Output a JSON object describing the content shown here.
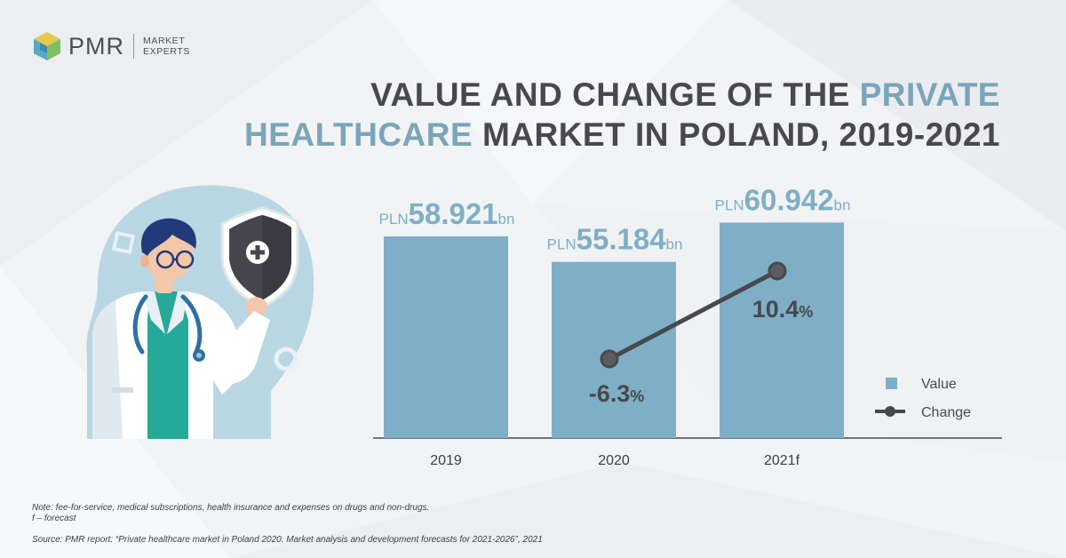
{
  "brand": {
    "name": "PMR",
    "tagline_line1": "MARKET",
    "tagline_line2": "EXPERTS"
  },
  "title": {
    "part1": "VALUE AND CHANGE OF THE ",
    "part2_highlight": "PRIVATE",
    "part3_highlight": "HEALTHCARE",
    "part4": " MARKET IN POLAND, 2019-2021"
  },
  "colors": {
    "bar": "#7eafc6",
    "line": "#48484d",
    "title_accent": "#7aa5bb",
    "title_dark": "#48484d"
  },
  "chart_data": {
    "type": "bar",
    "categories": [
      "2019",
      "2020",
      "2021f"
    ],
    "series": [
      {
        "name": "Value",
        "type": "bar",
        "values": [
          58.921,
          55.184,
          60.942
        ],
        "labels": [
          {
            "prefix": "PLN",
            "value": "58.921",
            "suffix": "bn"
          },
          {
            "prefix": "PLN",
            "value": "55.184",
            "suffix": "bn"
          },
          {
            "prefix": "PLN",
            "value": "60.942",
            "suffix": "bn"
          }
        ]
      },
      {
        "name": "Change",
        "type": "line",
        "x": [
          "2020",
          "2021f"
        ],
        "values": [
          -6.3,
          10.4
        ],
        "labels": [
          {
            "value": "-6.3",
            "suffix": "%"
          },
          {
            "value": "10.4",
            "suffix": "%"
          }
        ]
      }
    ],
    "legend": {
      "position": "right",
      "items": [
        "Value",
        "Change"
      ]
    },
    "grid": false,
    "y_axis_shown": false
  },
  "notes": {
    "line1": "Note: fee-for-service, medical subscriptions, health insurance and expenses on drugs and non-drugs.",
    "line2": "f – forecast",
    "source": "Source: PMR report: “Private healthcare market in Poland 2020. Market analysis and development forecasts for 2021-2026”, 2021"
  }
}
